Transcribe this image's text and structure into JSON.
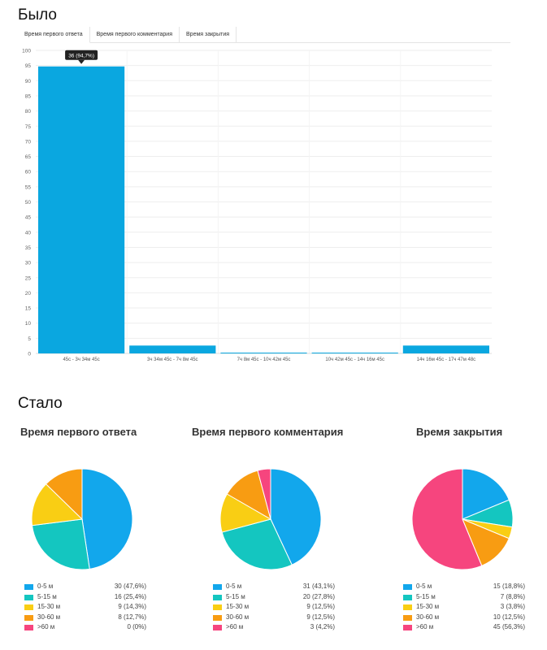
{
  "before_title": "Было",
  "after_title": "Стало",
  "tabs": [
    "Время первого ответа",
    "Время первого комментария",
    "Время закрытия"
  ],
  "colors": {
    "bar": "#0aa7e0",
    "tooltip_bg": "#222222",
    "grid": "#eeeeee"
  },
  "tooltip": "36 (94,7%)",
  "pie_palette": [
    "#12a7ec",
    "#14c6c0",
    "#f9ce14",
    "#f89c12",
    "#f6457e"
  ],
  "chart_data": [
    {
      "type": "bar",
      "categories": [
        "45с - 3ч 34м 45с",
        "3ч 34м 45с - 7ч 8м 45с",
        "7ч 8м 45с - 10ч 42м 45с",
        "10ч 42м 45с - 14ч 16м 45с",
        "14ч 16м 45с - 17ч 47м 48с"
      ],
      "values": [
        94.7,
        2.6,
        0,
        0,
        2.6
      ],
      "ylim": [
        0,
        100
      ],
      "yticks": [
        0,
        5,
        10,
        15,
        20,
        25,
        30,
        35,
        40,
        45,
        50,
        55,
        60,
        65,
        70,
        75,
        80,
        85,
        90,
        95,
        100
      ],
      "grid": true
    },
    {
      "type": "pie",
      "title": "Время первого ответа",
      "categories": [
        "0-5 м",
        "5-15 м",
        "15-30 м",
        "30-60 м",
        ">60 м"
      ],
      "values": [
        30,
        16,
        9,
        8,
        0
      ],
      "labels": [
        "30 (47,6%)",
        "16 (25,4%)",
        "9 (14,3%)",
        "8 (12,7%)",
        "0 (0%)"
      ]
    },
    {
      "type": "pie",
      "title": "Время первого комментария",
      "categories": [
        "0-5 м",
        "5-15 м",
        "15-30 м",
        "30-60 м",
        ">60 м"
      ],
      "values": [
        31,
        20,
        9,
        9,
        3
      ],
      "labels": [
        "31 (43,1%)",
        "20 (27,8%)",
        "9 (12,5%)",
        "9 (12,5%)",
        "3 (4,2%)"
      ]
    },
    {
      "type": "pie",
      "title": "Время закрытия",
      "categories": [
        "0-5 м",
        "5-15 м",
        "15-30 м",
        "30-60 м",
        ">60 м"
      ],
      "values": [
        15,
        7,
        3,
        10,
        45
      ],
      "labels": [
        "15 (18,8%)",
        "7 (8,8%)",
        "3 (3,8%)",
        "10 (12,5%)",
        "45 (56,3%)"
      ]
    }
  ]
}
